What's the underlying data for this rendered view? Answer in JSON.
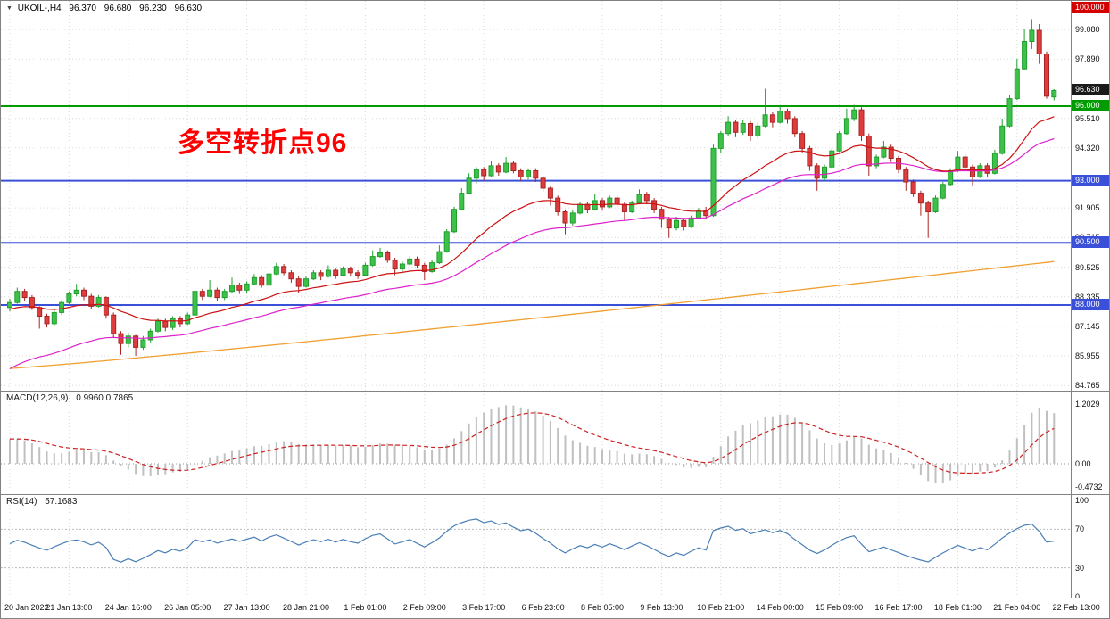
{
  "window": {
    "symbol_timeframe": "UKOIL-,H4",
    "open": "96.370",
    "high": "96.680",
    "low": "96.230",
    "close": "96.630"
  },
  "annotation": {
    "text": "多空转折点96",
    "color": "#ff0000"
  },
  "chart_data": {
    "type": "candlestick",
    "symbol": "UKOIL-",
    "timeframe": "H4",
    "current_bar": {
      "open": 96.37,
      "high": 96.68,
      "low": 96.23,
      "close": 96.63
    },
    "y_ticks": [
      "99.080",
      "97.890",
      "95.510",
      "94.320",
      "91.905",
      "90.715",
      "89.525",
      "88.335",
      "87.145",
      "85.955",
      "84.765"
    ],
    "levels": [
      {
        "label": "100.000",
        "price": 100.0,
        "color": "#d40000",
        "line": false
      },
      {
        "label": "96.630",
        "price": 96.63,
        "color": "#1a1a1a",
        "line": false
      },
      {
        "label": "96.000",
        "price": 96.0,
        "color": "#009b00",
        "line": true
      },
      {
        "label": "93.000",
        "price": 93.0,
        "color": "#3a50d9",
        "line": true
      },
      {
        "label": "90.500",
        "price": 90.5,
        "color": "#3a50d9",
        "line": true
      },
      {
        "label": "88.000",
        "price": 88.0,
        "color": "#3a50d9",
        "line": true
      }
    ],
    "colors": {
      "up": "#1f9e2c",
      "up_fill": "#3ec14b",
      "down": "#a82424",
      "down_fill": "#dd3d3d",
      "grid": "#d9d9d9"
    },
    "overlays": [
      {
        "name": "moving-average-fast",
        "color": "#cc1111"
      },
      {
        "name": "moving-average-mid",
        "color": "#dd22cc"
      },
      {
        "name": "moving-average-slow",
        "color": "#f0a030"
      }
    ],
    "x_labels": [
      "20 Jan 2022",
      "21 Jan 13:00",
      "24 Jan 16:00",
      "26 Jan 05:00",
      "27 Jan 13:00",
      "28 Jan 21:00",
      "1 Feb 01:00",
      "2 Feb 09:00",
      "3 Feb 17:00",
      "6 Feb 23:00",
      "8 Feb 05:00",
      "9 Feb 13:00",
      "10 Feb 21:00",
      "14 Feb 00:00",
      "15 Feb 09:00",
      "16 Feb 17:00",
      "18 Feb 01:00",
      "21 Feb 04:00",
      "22 Feb 13:00"
    ],
    "indicators": {
      "macd": {
        "name": "MACD(12,26,9)",
        "values": "0.9960 0.7865",
        "ticks": [
          {
            "label": "1.2029",
            "value": 1.2029
          },
          {
            "label": "0.00",
            "value": 0
          },
          {
            "label": "-0.4732",
            "value": -0.4732
          }
        ],
        "histogram_color": "#c0c0c0",
        "signal_color": "#cc2222"
      },
      "rsi": {
        "name": "RSI(14)",
        "value": "57.1683",
        "ticks": [
          {
            "label": "100",
            "value": 100
          },
          {
            "label": "70",
            "value": 70
          },
          {
            "label": "30",
            "value": 30
          },
          {
            "label": "0",
            "value": 0
          }
        ],
        "levels": [
          70,
          30
        ],
        "line_color": "#4a7fb5"
      }
    },
    "candles": [
      [
        87.9,
        88.25,
        87.75,
        88.1
      ],
      [
        88.1,
        88.7,
        88.05,
        88.55
      ],
      [
        88.55,
        88.65,
        88.15,
        88.3
      ],
      [
        88.3,
        88.4,
        87.8,
        87.9
      ],
      [
        87.9,
        87.95,
        87.05,
        87.55
      ],
      [
        87.55,
        87.65,
        87.1,
        87.25
      ],
      [
        87.25,
        87.8,
        87.15,
        87.7
      ],
      [
        87.7,
        88.2,
        87.6,
        88.1
      ],
      [
        88.1,
        88.55,
        88.0,
        88.45
      ],
      [
        88.45,
        88.85,
        88.35,
        88.6
      ],
      [
        88.6,
        88.7,
        88.2,
        88.35
      ],
      [
        88.35,
        88.45,
        87.85,
        87.95
      ],
      [
        87.95,
        88.4,
        87.9,
        88.3
      ],
      [
        88.3,
        88.35,
        87.45,
        87.6
      ],
      [
        87.6,
        87.7,
        86.7,
        86.85
      ],
      [
        86.85,
        86.95,
        86.0,
        86.45
      ],
      [
        86.45,
        86.9,
        86.3,
        86.75
      ],
      [
        86.75,
        86.8,
        85.95,
        86.3
      ],
      [
        86.3,
        86.75,
        86.2,
        86.6
      ],
      [
        86.6,
        87.05,
        86.5,
        86.95
      ],
      [
        86.95,
        87.45,
        86.9,
        87.35
      ],
      [
        87.35,
        87.45,
        86.95,
        87.1
      ],
      [
        87.1,
        87.55,
        87.0,
        87.45
      ],
      [
        87.45,
        87.55,
        87.1,
        87.25
      ],
      [
        87.25,
        87.7,
        87.2,
        87.6
      ],
      [
        87.6,
        88.75,
        87.55,
        88.55
      ],
      [
        88.55,
        88.65,
        88.2,
        88.35
      ],
      [
        88.35,
        89.0,
        88.3,
        88.6
      ],
      [
        88.6,
        88.7,
        88.15,
        88.3
      ],
      [
        88.3,
        88.65,
        88.2,
        88.55
      ],
      [
        88.55,
        89.1,
        88.5,
        88.8
      ],
      [
        88.8,
        88.9,
        88.45,
        88.6
      ],
      [
        88.6,
        88.95,
        88.5,
        88.85
      ],
      [
        88.85,
        89.25,
        88.8,
        89.1
      ],
      [
        89.1,
        89.2,
        88.7,
        88.8
      ],
      [
        88.8,
        89.5,
        88.75,
        89.25
      ],
      [
        89.25,
        89.7,
        89.2,
        89.55
      ],
      [
        89.55,
        89.65,
        89.2,
        89.3
      ],
      [
        89.3,
        89.4,
        88.9,
        89.05
      ],
      [
        89.05,
        89.15,
        88.5,
        88.75
      ],
      [
        88.75,
        89.15,
        88.7,
        89.05
      ],
      [
        89.05,
        89.4,
        89.0,
        89.3
      ],
      [
        89.3,
        89.4,
        89.0,
        89.15
      ],
      [
        89.15,
        89.6,
        89.1,
        89.4
      ],
      [
        89.4,
        89.5,
        89.05,
        89.2
      ],
      [
        89.2,
        89.55,
        89.15,
        89.45
      ],
      [
        89.45,
        89.55,
        89.15,
        89.3
      ],
      [
        89.3,
        89.4,
        89.05,
        89.2
      ],
      [
        89.2,
        89.7,
        89.15,
        89.6
      ],
      [
        89.6,
        90.2,
        89.55,
        89.95
      ],
      [
        89.95,
        90.3,
        89.9,
        90.1
      ],
      [
        90.1,
        90.2,
        89.7,
        89.8
      ],
      [
        89.8,
        89.9,
        89.2,
        89.45
      ],
      [
        89.45,
        89.75,
        89.35,
        89.65
      ],
      [
        89.65,
        89.95,
        89.6,
        89.85
      ],
      [
        89.85,
        89.95,
        89.5,
        89.6
      ],
      [
        89.6,
        89.7,
        89.0,
        89.35
      ],
      [
        89.35,
        89.8,
        89.3,
        89.7
      ],
      [
        89.7,
        90.4,
        89.65,
        90.15
      ],
      [
        90.15,
        91.05,
        90.1,
        90.95
      ],
      [
        90.95,
        91.95,
        90.9,
        91.85
      ],
      [
        91.85,
        92.7,
        91.8,
        92.5
      ],
      [
        92.5,
        93.3,
        92.45,
        93.1
      ],
      [
        93.1,
        93.55,
        92.9,
        93.45
      ],
      [
        93.45,
        93.55,
        93.0,
        93.2
      ],
      [
        93.2,
        93.8,
        93.15,
        93.6
      ],
      [
        93.6,
        93.7,
        93.2,
        93.35
      ],
      [
        93.35,
        93.95,
        93.3,
        93.7
      ],
      [
        93.7,
        93.8,
        93.3,
        93.4
      ],
      [
        93.4,
        93.5,
        93.0,
        93.15
      ],
      [
        93.15,
        93.5,
        93.05,
        93.4
      ],
      [
        93.4,
        93.5,
        92.95,
        93.1
      ],
      [
        93.1,
        93.2,
        92.55,
        92.7
      ],
      [
        92.7,
        92.8,
        92.0,
        92.3
      ],
      [
        92.3,
        92.4,
        91.6,
        91.75
      ],
      [
        91.75,
        91.85,
        90.85,
        91.3
      ],
      [
        91.3,
        91.8,
        91.2,
        91.7
      ],
      [
        91.7,
        92.15,
        91.65,
        92.05
      ],
      [
        92.05,
        92.15,
        91.7,
        91.85
      ],
      [
        91.85,
        92.45,
        91.8,
        92.2
      ],
      [
        92.2,
        92.3,
        91.8,
        91.95
      ],
      [
        91.95,
        92.4,
        91.9,
        92.3
      ],
      [
        92.3,
        92.4,
        91.95,
        92.05
      ],
      [
        92.05,
        92.15,
        91.4,
        91.75
      ],
      [
        91.75,
        92.2,
        91.7,
        92.1
      ],
      [
        92.1,
        92.65,
        92.05,
        92.45
      ],
      [
        92.45,
        92.55,
        92.05,
        92.2
      ],
      [
        92.2,
        92.3,
        91.7,
        91.85
      ],
      [
        91.85,
        91.95,
        91.1,
        91.45
      ],
      [
        91.45,
        91.55,
        90.7,
        91.1
      ],
      [
        91.1,
        91.55,
        91.0,
        91.4
      ],
      [
        91.4,
        91.5,
        91.0,
        91.15
      ],
      [
        91.15,
        91.6,
        91.1,
        91.5
      ],
      [
        91.5,
        91.9,
        91.45,
        91.8
      ],
      [
        91.8,
        91.95,
        91.45,
        91.6
      ],
      [
        91.6,
        94.45,
        91.55,
        94.3
      ],
      [
        94.3,
        95.0,
        94.1,
        94.9
      ],
      [
        94.9,
        95.6,
        94.8,
        95.35
      ],
      [
        95.35,
        95.45,
        94.75,
        94.95
      ],
      [
        94.95,
        95.45,
        94.85,
        95.3
      ],
      [
        95.3,
        95.4,
        94.6,
        94.8
      ],
      [
        94.8,
        95.35,
        94.7,
        95.2
      ],
      [
        95.2,
        96.7,
        95.15,
        95.65
      ],
      [
        95.65,
        95.75,
        95.15,
        95.35
      ],
      [
        95.35,
        96.0,
        95.3,
        95.8
      ],
      [
        95.8,
        95.9,
        95.3,
        95.5
      ],
      [
        95.5,
        95.6,
        94.75,
        94.9
      ],
      [
        94.9,
        95.0,
        94.1,
        94.3
      ],
      [
        94.3,
        94.4,
        93.4,
        93.6
      ],
      [
        93.6,
        93.7,
        92.6,
        93.1
      ],
      [
        93.1,
        93.65,
        93.0,
        93.55
      ],
      [
        93.55,
        94.3,
        93.5,
        94.2
      ],
      [
        94.2,
        95.0,
        94.15,
        94.9
      ],
      [
        94.9,
        95.9,
        94.85,
        95.5
      ],
      [
        95.5,
        96.05,
        95.4,
        95.85
      ],
      [
        95.85,
        95.95,
        94.6,
        94.8
      ],
      [
        94.8,
        94.9,
        93.2,
        93.6
      ],
      [
        93.6,
        94.05,
        93.5,
        93.95
      ],
      [
        93.95,
        94.6,
        93.9,
        94.35
      ],
      [
        94.35,
        94.45,
        93.75,
        93.9
      ],
      [
        93.9,
        94.0,
        93.3,
        93.45
      ],
      [
        93.45,
        93.55,
        92.6,
        92.95
      ],
      [
        92.95,
        93.05,
        92.35,
        92.5
      ],
      [
        92.5,
        92.6,
        91.6,
        92.1
      ],
      [
        92.1,
        92.2,
        90.7,
        91.75
      ],
      [
        91.75,
        92.4,
        91.7,
        92.3
      ],
      [
        92.3,
        92.95,
        92.25,
        92.85
      ],
      [
        92.85,
        93.5,
        92.8,
        93.4
      ],
      [
        93.4,
        94.2,
        93.35,
        93.95
      ],
      [
        93.95,
        94.05,
        93.45,
        93.55
      ],
      [
        93.55,
        93.65,
        92.8,
        93.15
      ],
      [
        93.15,
        93.7,
        93.1,
        93.6
      ],
      [
        93.6,
        93.7,
        93.15,
        93.3
      ],
      [
        93.3,
        94.25,
        93.25,
        94.1
      ],
      [
        94.1,
        95.5,
        94.05,
        95.2
      ],
      [
        95.2,
        96.45,
        95.15,
        96.3
      ],
      [
        96.3,
        97.9,
        96.25,
        97.5
      ],
      [
        97.5,
        99.1,
        97.45,
        98.6
      ],
      [
        98.6,
        99.5,
        98.3,
        99.05
      ],
      [
        99.05,
        99.3,
        97.7,
        98.1
      ],
      [
        98.1,
        98.2,
        96.3,
        96.4
      ],
      [
        96.37,
        96.68,
        96.23,
        96.63
      ]
    ]
  }
}
